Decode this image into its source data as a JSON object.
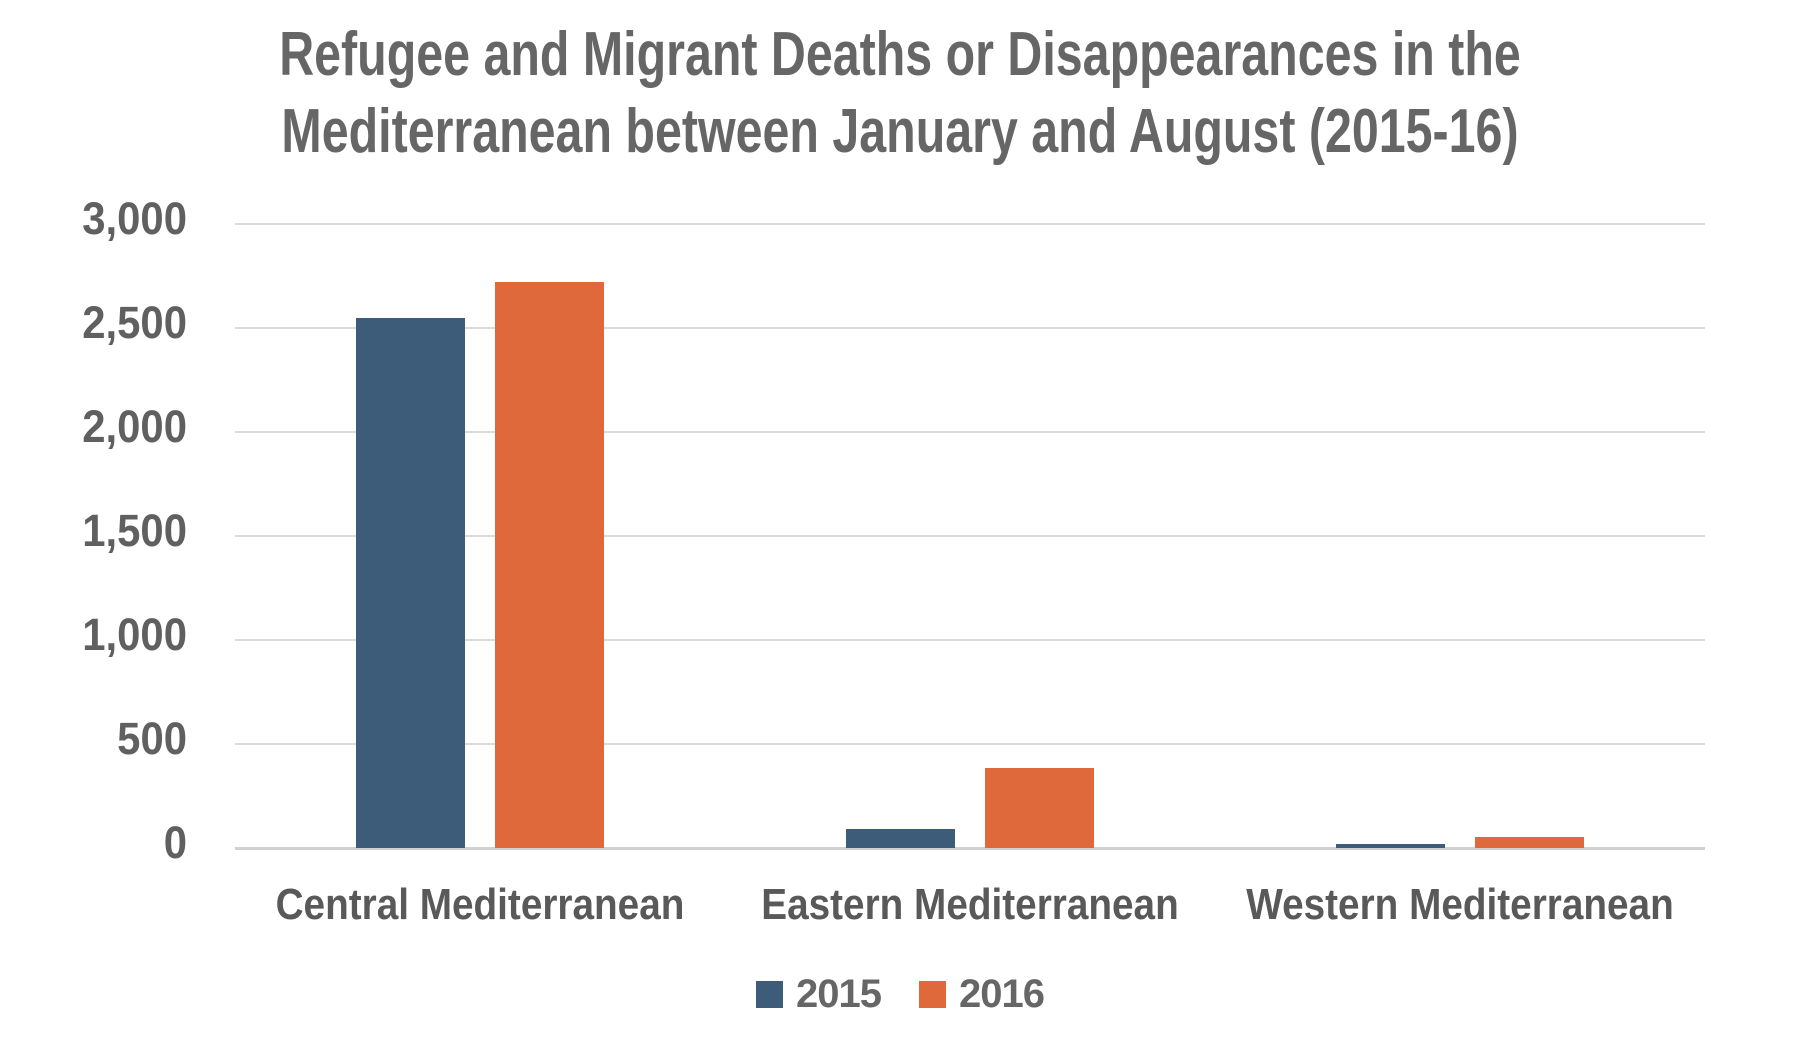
{
  "chart_data": {
    "type": "bar",
    "title_lines": [
      "Refugee and Migrant Deaths or Disappearances in the",
      "Mediterranean between January and August (2015-16)"
    ],
    "categories": [
      "Central Mediterranean",
      "Eastern Mediterranean",
      "Western Mediterranean"
    ],
    "series": [
      {
        "name": "2015",
        "color": "#3C5C7A",
        "values": [
          2550,
          90,
          20
        ]
      },
      {
        "name": "2016",
        "color": "#E0693C",
        "values": [
          2720,
          385,
          55
        ]
      }
    ],
    "xlabel": "",
    "ylabel": "",
    "ylim": [
      0,
      3000
    ],
    "ytick_step": 500,
    "ytick_labels": [
      "0",
      "500",
      "1,000",
      "1,500",
      "2,000",
      "2,500",
      "3,000"
    ],
    "grid": true,
    "legend_position": "bottom",
    "colors": {
      "series_2015": "#3C5C7A",
      "series_2016": "#E0693C",
      "title_text": "#666666",
      "axis_tick_text": "#606060",
      "category_text": "#595959",
      "gridline": "#DBDBDB",
      "baseline": "#D1D1D1",
      "background": "#FFFFFF"
    }
  }
}
